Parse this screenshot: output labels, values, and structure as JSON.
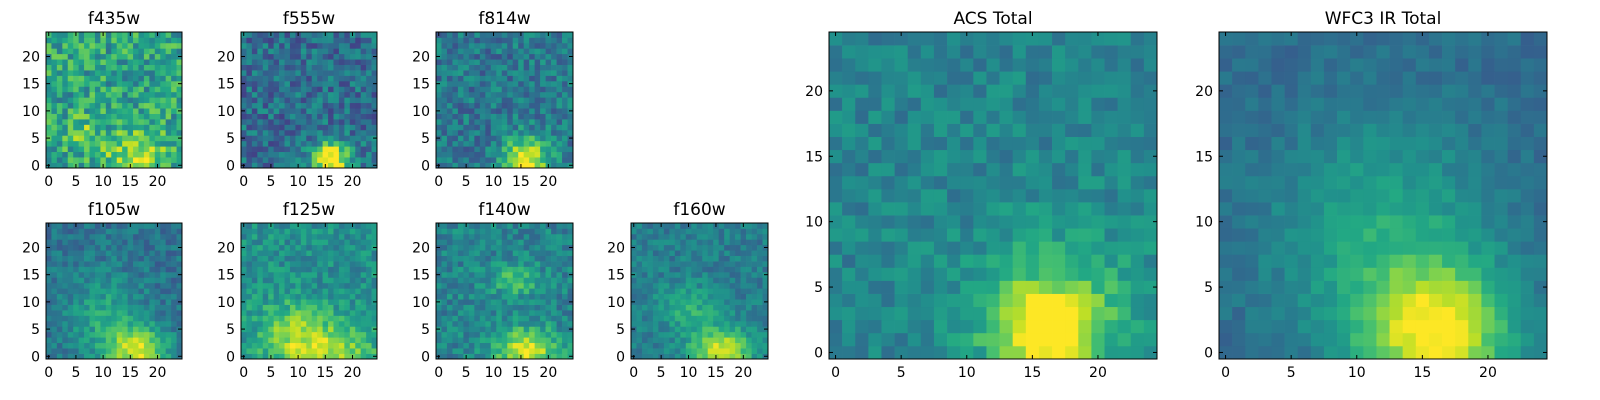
{
  "chart_data": [
    {
      "type": "heatmap",
      "title": "f435w",
      "x_ticks": [
        "0",
        "5",
        "10",
        "15",
        "20"
      ],
      "y_ticks": [
        "0",
        "5",
        "10",
        "15",
        "20"
      ],
      "xlim": [
        0,
        25
      ],
      "ylim": [
        0,
        25
      ],
      "colormap": "viridis",
      "grid": false,
      "pattern": {
        "noise": 0.42,
        "noise_seed": 11,
        "base": 0.58,
        "blobs": [
          {
            "x": 16,
            "y": 2,
            "sx": 4,
            "sy": 3,
            "a": 0.3
          },
          {
            "x": 6,
            "y": 6,
            "sx": 2,
            "sy": 2,
            "a": 0.2
          }
        ]
      }
    },
    {
      "type": "heatmap",
      "title": "f555w",
      "x_ticks": [
        "0",
        "5",
        "10",
        "15",
        "20"
      ],
      "y_ticks": [
        "0",
        "5",
        "10",
        "15",
        "20"
      ],
      "xlim": [
        0,
        25
      ],
      "ylim": [
        0,
        25
      ],
      "colormap": "viridis",
      "grid": false,
      "pattern": {
        "noise": 0.34,
        "noise_seed": 22,
        "base": 0.36,
        "blobs": [
          {
            "x": 16,
            "y": 1,
            "sx": 2.5,
            "sy": 2.5,
            "a": 0.7
          }
        ]
      }
    },
    {
      "type": "heatmap",
      "title": "f814w",
      "x_ticks": [
        "0",
        "5",
        "10",
        "15",
        "20"
      ],
      "y_ticks": [
        "0",
        "5",
        "10",
        "15",
        "20"
      ],
      "xlim": [
        0,
        25
      ],
      "ylim": [
        0,
        25
      ],
      "colormap": "viridis",
      "grid": false,
      "pattern": {
        "noise": 0.32,
        "noise_seed": 33,
        "base": 0.4,
        "blobs": [
          {
            "x": 16,
            "y": 1,
            "sx": 3,
            "sy": 3,
            "a": 0.6
          }
        ]
      }
    },
    {
      "type": "heatmap",
      "title": "f105w",
      "x_ticks": [
        "0",
        "5",
        "10",
        "15",
        "20"
      ],
      "y_ticks": [
        "0",
        "5",
        "10",
        "15",
        "20"
      ],
      "xlim": [
        0,
        25
      ],
      "ylim": [
        0,
        25
      ],
      "colormap": "viridis",
      "grid": false,
      "pattern": {
        "noise": 0.22,
        "noise_seed": 44,
        "base": 0.38,
        "blobs": [
          {
            "x": 16,
            "y": 1,
            "sx": 4,
            "sy": 3,
            "a": 0.55
          },
          {
            "x": 10,
            "y": 8,
            "sx": 5,
            "sy": 5,
            "a": 0.2
          }
        ]
      }
    },
    {
      "type": "heatmap",
      "title": "f125w",
      "x_ticks": [
        "0",
        "5",
        "10",
        "15",
        "20"
      ],
      "y_ticks": [
        "0",
        "5",
        "10",
        "15",
        "20"
      ],
      "xlim": [
        0,
        25
      ],
      "ylim": [
        0,
        25
      ],
      "colormap": "viridis",
      "grid": false,
      "pattern": {
        "noise": 0.26,
        "noise_seed": 55,
        "base": 0.5,
        "blobs": [
          {
            "x": 15,
            "y": 1,
            "sx": 6,
            "sy": 4,
            "a": 0.4
          },
          {
            "x": 8,
            "y": 5,
            "sx": 4,
            "sy": 4,
            "a": 0.2
          }
        ]
      }
    },
    {
      "type": "heatmap",
      "title": "f140w",
      "x_ticks": [
        "0",
        "5",
        "10",
        "15",
        "20"
      ],
      "y_ticks": [
        "0",
        "5",
        "10",
        "15",
        "20"
      ],
      "xlim": [
        0,
        25
      ],
      "ylim": [
        0,
        25
      ],
      "colormap": "viridis",
      "grid": false,
      "pattern": {
        "noise": 0.26,
        "noise_seed": 66,
        "base": 0.45,
        "blobs": [
          {
            "x": 16,
            "y": 1,
            "sx": 4,
            "sy": 3,
            "a": 0.5
          },
          {
            "x": 14,
            "y": 14,
            "sx": 3,
            "sy": 2,
            "a": 0.25
          }
        ]
      }
    },
    {
      "type": "heatmap",
      "title": "f160w",
      "x_ticks": [
        "0",
        "5",
        "10",
        "15",
        "20"
      ],
      "y_ticks": [
        "0",
        "5",
        "10",
        "15",
        "20"
      ],
      "xlim": [
        0,
        25
      ],
      "ylim": [
        0,
        25
      ],
      "colormap": "viridis",
      "grid": false,
      "pattern": {
        "noise": 0.2,
        "noise_seed": 77,
        "base": 0.42,
        "blobs": [
          {
            "x": 16,
            "y": 1,
            "sx": 4,
            "sy": 3,
            "a": 0.5
          },
          {
            "x": 10,
            "y": 9,
            "sx": 4,
            "sy": 3,
            "a": 0.2
          }
        ]
      }
    },
    {
      "type": "heatmap",
      "title": "ACS Total",
      "x_ticks": [
        "0",
        "5",
        "10",
        "15",
        "20"
      ],
      "y_ticks": [
        "0",
        "5",
        "10",
        "15",
        "20"
      ],
      "xlim": [
        0,
        25
      ],
      "ylim": [
        0,
        25
      ],
      "colormap": "viridis",
      "grid": false,
      "pattern": {
        "noise": 0.2,
        "noise_seed": 88,
        "base": 0.45,
        "blobs": [
          {
            "x": 16,
            "y": 1.5,
            "sx": 2.8,
            "sy": 2.5,
            "a": 0.55
          },
          {
            "x": 17,
            "y": 4,
            "sx": 5,
            "sy": 4,
            "a": 0.2
          }
        ]
      }
    },
    {
      "type": "heatmap",
      "title": "WFC3 IR Total",
      "x_ticks": [
        "0",
        "5",
        "10",
        "15",
        "20"
      ],
      "y_ticks": [
        "0",
        "5",
        "10",
        "15",
        "20"
      ],
      "xlim": [
        0,
        25
      ],
      "ylim": [
        0,
        25
      ],
      "colormap": "viridis",
      "grid": false,
      "pattern": {
        "noise": 0.12,
        "noise_seed": 99,
        "base": 0.35,
        "blobs": [
          {
            "x": 16,
            "y": 1.5,
            "sx": 4,
            "sy": 3.5,
            "a": 0.6
          },
          {
            "x": 12,
            "y": 9,
            "sx": 6,
            "sy": 6,
            "a": 0.25
          }
        ]
      }
    }
  ]
}
